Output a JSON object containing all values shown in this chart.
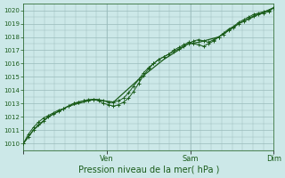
{
  "xlabel": "Pression niveau de la mer( hPa )",
  "background_color": "#cce8e8",
  "grid_color": "#99bbbb",
  "line_color": "#1a5c1a",
  "ylim": [
    1009.5,
    1020.5
  ],
  "yticks": [
    1010,
    1011,
    1012,
    1013,
    1014,
    1015,
    1016,
    1017,
    1018,
    1019,
    1020
  ],
  "xlim": [
    0.0,
    1.0
  ],
  "xtick_pos": [
    0.0,
    0.333,
    0.667,
    1.0
  ],
  "xtick_labels": [
    "",
    "Ven",
    "Sam",
    "Dim"
  ],
  "n_xminor": 8,
  "series1_x": [
    0.0,
    0.02,
    0.04,
    0.06,
    0.08,
    0.1,
    0.12,
    0.14,
    0.16,
    0.18,
    0.2,
    0.22,
    0.24,
    0.26,
    0.28,
    0.3,
    0.32,
    0.34,
    0.36,
    0.38,
    0.4,
    0.42,
    0.44,
    0.46,
    0.48,
    0.5,
    0.52,
    0.54,
    0.56,
    0.58,
    0.6,
    0.62,
    0.64,
    0.66,
    0.68,
    0.7,
    0.72,
    0.74,
    0.76,
    0.78,
    0.8,
    0.82,
    0.84,
    0.86,
    0.88,
    0.9,
    0.92,
    0.94,
    0.96,
    0.98,
    1.0
  ],
  "series1_y": [
    1010.0,
    1010.5,
    1011.0,
    1011.4,
    1011.7,
    1012.0,
    1012.2,
    1012.4,
    1012.6,
    1012.8,
    1013.0,
    1013.1,
    1013.2,
    1013.2,
    1013.3,
    1013.3,
    1013.2,
    1013.1,
    1013.1,
    1013.2,
    1013.4,
    1013.8,
    1014.3,
    1014.8,
    1015.3,
    1015.7,
    1016.0,
    1016.3,
    1016.5,
    1016.7,
    1016.9,
    1017.1,
    1017.3,
    1017.5,
    1017.7,
    1017.8,
    1017.7,
    1017.6,
    1017.8,
    1018.0,
    1018.2,
    1018.5,
    1018.7,
    1019.0,
    1019.2,
    1019.4,
    1019.6,
    1019.7,
    1019.8,
    1019.9,
    1020.2
  ],
  "series2_x": [
    0.0,
    0.02,
    0.04,
    0.06,
    0.08,
    0.1,
    0.12,
    0.14,
    0.16,
    0.18,
    0.2,
    0.22,
    0.24,
    0.26,
    0.28,
    0.3,
    0.32,
    0.34,
    0.36,
    0.38,
    0.4,
    0.42,
    0.44,
    0.46,
    0.48,
    0.5,
    0.52,
    0.54,
    0.56,
    0.58,
    0.6,
    0.62,
    0.64,
    0.66,
    0.68,
    0.7,
    0.72,
    0.74,
    0.76,
    0.78,
    0.8,
    0.82,
    0.84,
    0.86,
    0.88,
    0.9,
    0.92,
    0.94,
    0.96,
    0.98,
    1.0
  ],
  "series2_y": [
    1010.0,
    1010.7,
    1011.2,
    1011.6,
    1011.9,
    1012.1,
    1012.3,
    1012.5,
    1012.6,
    1012.8,
    1013.0,
    1013.1,
    1013.2,
    1013.3,
    1013.3,
    1013.2,
    1013.0,
    1012.9,
    1012.8,
    1012.9,
    1013.1,
    1013.4,
    1013.9,
    1014.5,
    1015.1,
    1015.6,
    1016.0,
    1016.3,
    1016.5,
    1016.7,
    1017.0,
    1017.2,
    1017.4,
    1017.6,
    1017.5,
    1017.4,
    1017.3,
    1017.5,
    1017.7,
    1018.0,
    1018.3,
    1018.6,
    1018.8,
    1019.1,
    1019.3,
    1019.5,
    1019.7,
    1019.8,
    1019.9,
    1020.0,
    1020.2
  ],
  "series3_x": [
    0.0,
    0.04,
    0.1,
    0.18,
    0.28,
    0.36,
    0.46,
    0.56,
    0.66,
    0.7,
    0.78,
    0.86,
    0.94,
    1.0
  ],
  "series3_y": [
    1010.0,
    1011.0,
    1012.0,
    1012.8,
    1013.3,
    1013.1,
    1014.8,
    1016.3,
    1017.5,
    1017.6,
    1018.0,
    1019.0,
    1019.7,
    1020.2
  ]
}
